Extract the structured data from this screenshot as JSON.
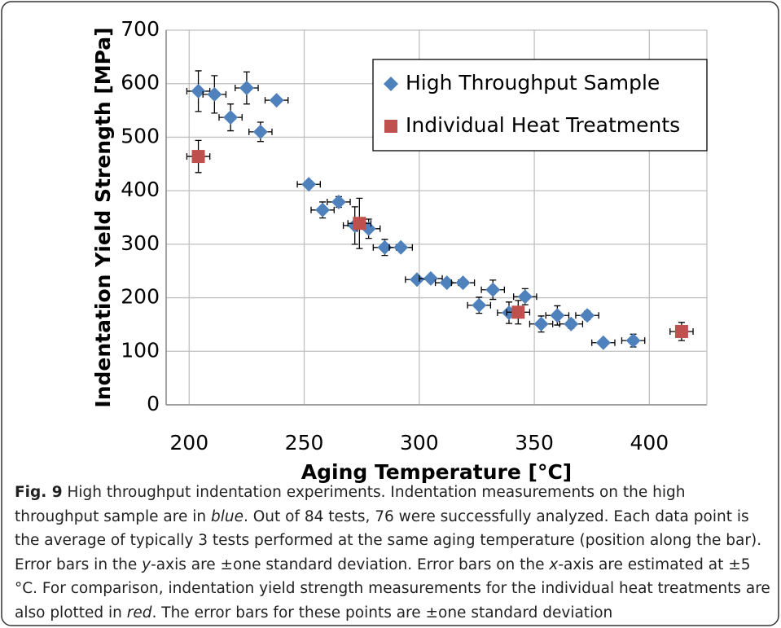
{
  "chart_data": {
    "type": "scatter",
    "xlabel": "Aging Temperature [°C]",
    "ylabel": "Indentation Yield Strength  [MPa]",
    "xlim": [
      190,
      425
    ],
    "xticks": [
      200,
      250,
      300,
      350,
      400
    ],
    "ylim": [
      0,
      700
    ],
    "yticks": [
      0,
      100,
      200,
      300,
      400,
      500,
      600,
      700
    ],
    "grid": true,
    "legend": "upper right",
    "series": [
      {
        "name": "High Throughput Sample",
        "color": "#4f81bd",
        "marker": "diamond",
        "x": [
          204,
          211,
          218,
          225,
          231,
          238,
          252,
          258,
          265,
          272,
          278,
          285,
          292,
          299,
          305,
          312,
          319,
          326,
          332,
          339,
          346,
          353,
          360,
          366,
          373,
          380,
          393
        ],
        "values": [
          586,
          580,
          537,
          592,
          510,
          569,
          412,
          364,
          379,
          335,
          329,
          294,
          294,
          234,
          236,
          228,
          228,
          186,
          215,
          172,
          202,
          151,
          167,
          151,
          167,
          116,
          120
        ],
        "yerr": [
          38,
          35,
          25,
          30,
          18,
          5,
          5,
          15,
          10,
          35,
          18,
          15,
          5,
          5,
          5,
          5,
          5,
          15,
          18,
          20,
          15,
          15,
          18,
          8,
          8,
          5,
          12
        ],
        "xerr": [
          5,
          5,
          5,
          5,
          5,
          5,
          5,
          5,
          5,
          5,
          5,
          5,
          5,
          5,
          5,
          5,
          5,
          5,
          5,
          5,
          5,
          5,
          5,
          5,
          5,
          5,
          5
        ]
      },
      {
        "name": "Individual Heat Treatments",
        "color": "#c0504d",
        "marker": "square",
        "x": [
          204,
          274,
          343,
          414
        ],
        "values": [
          464,
          339,
          173,
          137
        ],
        "yerr": [
          30,
          47,
          22,
          17
        ],
        "xerr": [
          5,
          5,
          5,
          5
        ]
      }
    ]
  },
  "caption": [
    {
      "text": "Fig. 9",
      "bold": true
    },
    {
      "text": " High throughput indentation experiments. Indentation measurements on the high throughput sample are in "
    },
    {
      "text": "blue",
      "italic": true
    },
    {
      "text": ". Out of 84 tests, 76 were successfully analyzed. Each data point is the average of typically 3 tests performed at the same aging temperature (position along the bar). Error bars in the "
    },
    {
      "text": "y",
      "italic": true
    },
    {
      "text": "-axis are ±one standard deviation. Error bars on the "
    },
    {
      "text": "x",
      "italic": true
    },
    {
      "text": "-axis are estimated at ±5 °C. For comparison, indentation yield strength measurements for the individual heat treatments are also plotted in "
    },
    {
      "text": "red",
      "italic": true
    },
    {
      "text": ". The error bars for these points are ±one standard deviation"
    }
  ]
}
